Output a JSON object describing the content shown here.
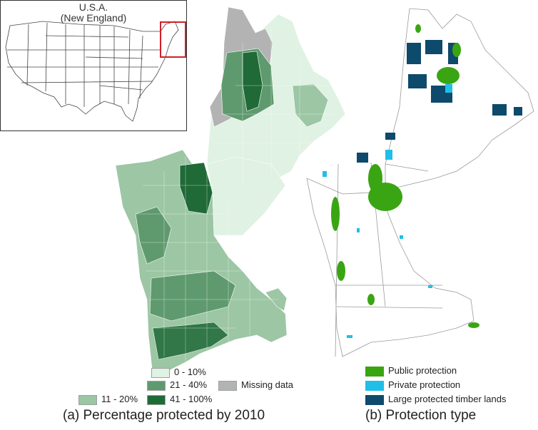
{
  "inset": {
    "title_line1": "U.S.A.",
    "title_line2": "(New England)"
  },
  "panel_a": {
    "caption": "(a) Percentage protected by 2010",
    "legend": [
      {
        "label": "0 - 10%",
        "color": "#dff2e3"
      },
      {
        "label": "21 - 40%",
        "color": "#5f9a6e"
      },
      {
        "label": "Missing data",
        "color": "#b3b3b3"
      },
      {
        "label": "11 - 20%",
        "color": "#9cc6a4"
      },
      {
        "label": "41 - 100%",
        "color": "#1f6a37"
      }
    ]
  },
  "panel_b": {
    "caption": "(b) Protection type",
    "legend": [
      {
        "label": "Public protection",
        "color": "#3aa513"
      },
      {
        "label": "Private protection",
        "color": "#1fbfe8"
      },
      {
        "label": "Large protected timber lands",
        "color": "#0d4a6b"
      }
    ]
  },
  "colors": {
    "highlight_box": "#d0202a",
    "outline": "#555555"
  }
}
